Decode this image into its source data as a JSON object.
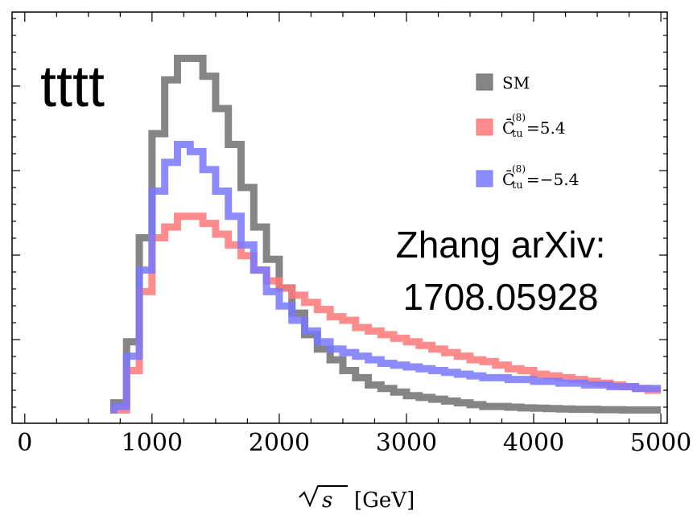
{
  "chart_data": {
    "type": "line",
    "style": "step-histogram",
    "process_label": "tttt",
    "annotation_lines": [
      "Zhang arXiv:",
      "1708.05928"
    ],
    "xlabel_sqrt": "s",
    "xlabel_unit": "[GeV]",
    "ylabel": "",
    "xlim": [
      -100,
      5050
    ],
    "ylim": [
      0,
      1.0
    ],
    "y_tick_labels": false,
    "x_ticks": [
      0,
      1000,
      2000,
      3000,
      4000,
      5000
    ],
    "x_tick_labels": [
      "0",
      "1000",
      "2000",
      "3000",
      "4000",
      "5000"
    ],
    "legend_position": "top-right",
    "bin_edges": [
      700,
      800,
      900,
      1000,
      1100,
      1200,
      1300,
      1400,
      1500,
      1600,
      1700,
      1800,
      1900,
      2000,
      2100,
      2200,
      2300,
      2400,
      2500,
      2600,
      2700,
      2800,
      2900,
      3000,
      3100,
      3200,
      3300,
      3400,
      3500,
      3600,
      3700,
      3800,
      3900,
      4000,
      4100,
      4200,
      4300,
      4400,
      4500,
      4600,
      4700,
      4800,
      4900,
      5000
    ],
    "series": [
      {
        "name": "SM",
        "color": "#707070",
        "values": [
          0.03,
          0.2,
          0.49,
          0.78,
          0.93,
          0.99,
          0.99,
          0.94,
          0.85,
          0.75,
          0.63,
          0.52,
          0.43,
          0.35,
          0.28,
          0.22,
          0.18,
          0.15,
          0.12,
          0.1,
          0.08,
          0.07,
          0.06,
          0.05,
          0.045,
          0.04,
          0.035,
          0.03,
          0.025,
          0.02,
          0.02,
          0.018,
          0.016,
          0.015,
          0.014,
          0.013,
          0.012,
          0.012,
          0.011,
          0.011,
          0.01,
          0.01,
          0.01
        ]
      },
      {
        "name_prefix": "C̄",
        "name_sub": "tu",
        "name_sup": "(8)",
        "name_value": "=5.4",
        "color": "#ff7878",
        "values": [
          0.01,
          0.12,
          0.34,
          0.49,
          0.52,
          0.55,
          0.55,
          0.53,
          0.5,
          0.47,
          0.44,
          0.4,
          0.37,
          0.35,
          0.33,
          0.31,
          0.29,
          0.27,
          0.26,
          0.24,
          0.23,
          0.22,
          0.21,
          0.2,
          0.19,
          0.18,
          0.17,
          0.16,
          0.15,
          0.145,
          0.135,
          0.125,
          0.12,
          0.11,
          0.105,
          0.1,
          0.095,
          0.09,
          0.085,
          0.08,
          0.075,
          0.07,
          0.065
        ]
      },
      {
        "name_prefix": "C̄",
        "name_sub": "tu",
        "name_sup": "(8)",
        "name_value": "=−5.4",
        "color": "#7878ff",
        "values": [
          0.02,
          0.16,
          0.4,
          0.62,
          0.7,
          0.75,
          0.73,
          0.68,
          0.62,
          0.55,
          0.47,
          0.4,
          0.34,
          0.3,
          0.26,
          0.23,
          0.2,
          0.18,
          0.17,
          0.16,
          0.15,
          0.14,
          0.135,
          0.13,
          0.125,
          0.12,
          0.115,
          0.11,
          0.105,
          0.1,
          0.1,
          0.095,
          0.095,
          0.09,
          0.09,
          0.085,
          0.085,
          0.08,
          0.08,
          0.075,
          0.075,
          0.07,
          0.07
        ]
      }
    ]
  }
}
